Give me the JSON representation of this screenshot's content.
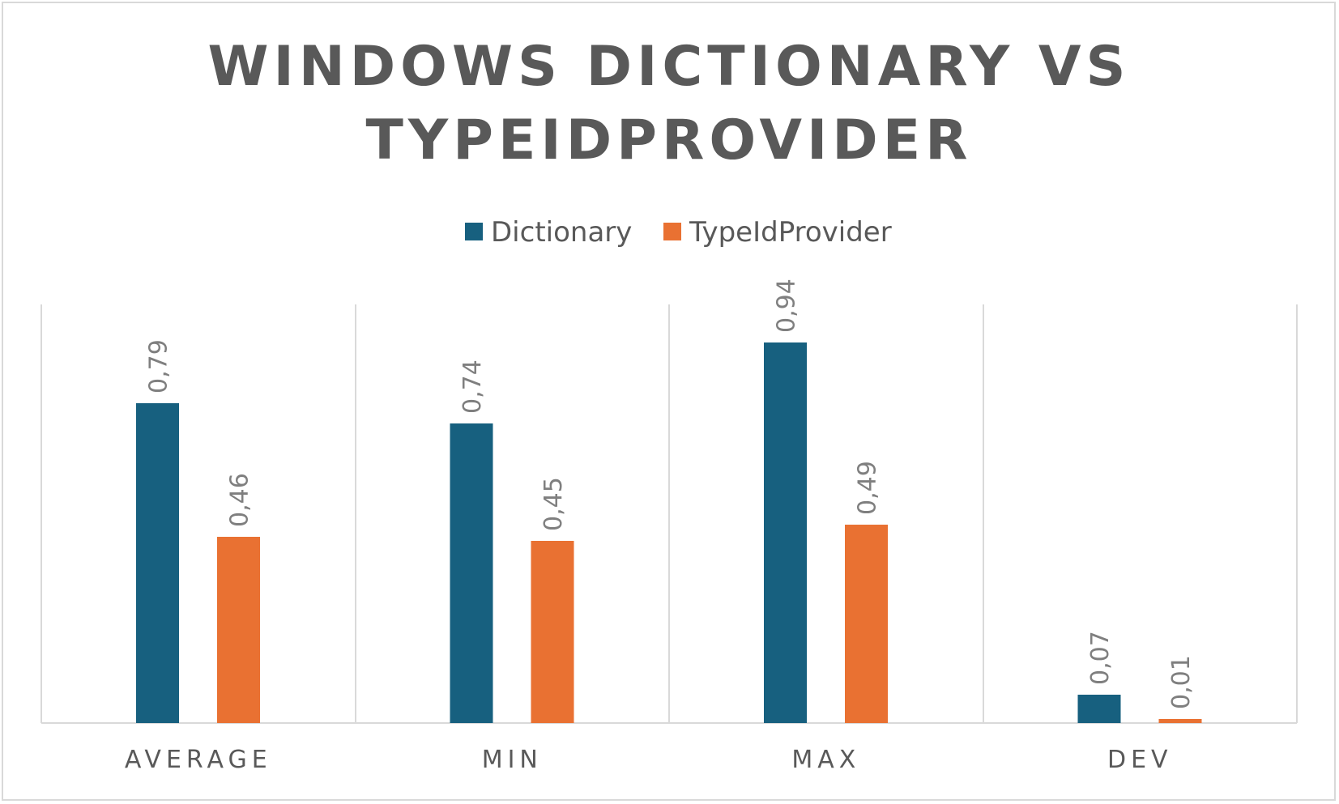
{
  "chart_data": {
    "type": "bar",
    "title_lines": [
      "WINDOWS DICTIONARY VS",
      "TYPEIDPROVIDER"
    ],
    "categories": [
      "AVERAGE",
      "MIN",
      "MAX",
      "DEV"
    ],
    "series": [
      {
        "name": "Dictionary",
        "color": "#17607f",
        "values": [
          0.79,
          0.74,
          0.94,
          0.07
        ],
        "labels": [
          "0,79",
          "0,74",
          "0,94",
          "0,07"
        ]
      },
      {
        "name": "TypeIdProvider",
        "color": "#e97132",
        "values": [
          0.46,
          0.45,
          0.49,
          0.01
        ],
        "labels": [
          "0,46",
          "0,45",
          "0,49",
          "0,01"
        ]
      }
    ],
    "ylim": [
      0,
      1
    ],
    "legend_position": "top",
    "grid": "vertical category separators",
    "colors": {
      "text": "#595959",
      "value_label": "#7f7f7f",
      "gridline": "#d9d9d9",
      "frame": "#d9d9d9"
    }
  }
}
